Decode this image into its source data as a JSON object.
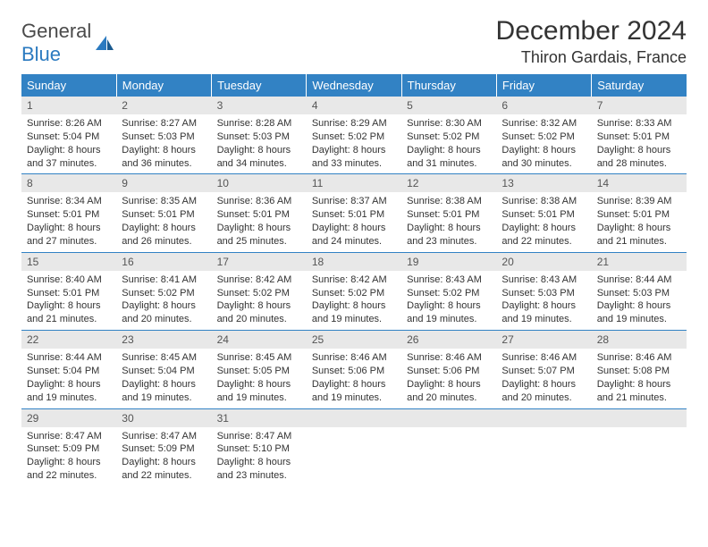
{
  "logo": {
    "word1": "General",
    "word2": "Blue"
  },
  "title": "December 2024",
  "location": "Thiron Gardais, France",
  "colors": {
    "header_bg": "#3282c4",
    "header_text": "#ffffff",
    "daynum_bg": "#e8e8e8",
    "row_border": "#3282c4",
    "logo_gray": "#4a4a4a",
    "logo_blue": "#2b7ac0"
  },
  "weekdays": [
    "Sunday",
    "Monday",
    "Tuesday",
    "Wednesday",
    "Thursday",
    "Friday",
    "Saturday"
  ],
  "weeks": [
    [
      {
        "n": "1",
        "sr": "8:26 AM",
        "ss": "5:04 PM",
        "dl": "8 hours and 37 minutes."
      },
      {
        "n": "2",
        "sr": "8:27 AM",
        "ss": "5:03 PM",
        "dl": "8 hours and 36 minutes."
      },
      {
        "n": "3",
        "sr": "8:28 AM",
        "ss": "5:03 PM",
        "dl": "8 hours and 34 minutes."
      },
      {
        "n": "4",
        "sr": "8:29 AM",
        "ss": "5:02 PM",
        "dl": "8 hours and 33 minutes."
      },
      {
        "n": "5",
        "sr": "8:30 AM",
        "ss": "5:02 PM",
        "dl": "8 hours and 31 minutes."
      },
      {
        "n": "6",
        "sr": "8:32 AM",
        "ss": "5:02 PM",
        "dl": "8 hours and 30 minutes."
      },
      {
        "n": "7",
        "sr": "8:33 AM",
        "ss": "5:01 PM",
        "dl": "8 hours and 28 minutes."
      }
    ],
    [
      {
        "n": "8",
        "sr": "8:34 AM",
        "ss": "5:01 PM",
        "dl": "8 hours and 27 minutes."
      },
      {
        "n": "9",
        "sr": "8:35 AM",
        "ss": "5:01 PM",
        "dl": "8 hours and 26 minutes."
      },
      {
        "n": "10",
        "sr": "8:36 AM",
        "ss": "5:01 PM",
        "dl": "8 hours and 25 minutes."
      },
      {
        "n": "11",
        "sr": "8:37 AM",
        "ss": "5:01 PM",
        "dl": "8 hours and 24 minutes."
      },
      {
        "n": "12",
        "sr": "8:38 AM",
        "ss": "5:01 PM",
        "dl": "8 hours and 23 minutes."
      },
      {
        "n": "13",
        "sr": "8:38 AM",
        "ss": "5:01 PM",
        "dl": "8 hours and 22 minutes."
      },
      {
        "n": "14",
        "sr": "8:39 AM",
        "ss": "5:01 PM",
        "dl": "8 hours and 21 minutes."
      }
    ],
    [
      {
        "n": "15",
        "sr": "8:40 AM",
        "ss": "5:01 PM",
        "dl": "8 hours and 21 minutes."
      },
      {
        "n": "16",
        "sr": "8:41 AM",
        "ss": "5:02 PM",
        "dl": "8 hours and 20 minutes."
      },
      {
        "n": "17",
        "sr": "8:42 AM",
        "ss": "5:02 PM",
        "dl": "8 hours and 20 minutes."
      },
      {
        "n": "18",
        "sr": "8:42 AM",
        "ss": "5:02 PM",
        "dl": "8 hours and 19 minutes."
      },
      {
        "n": "19",
        "sr": "8:43 AM",
        "ss": "5:02 PM",
        "dl": "8 hours and 19 minutes."
      },
      {
        "n": "20",
        "sr": "8:43 AM",
        "ss": "5:03 PM",
        "dl": "8 hours and 19 minutes."
      },
      {
        "n": "21",
        "sr": "8:44 AM",
        "ss": "5:03 PM",
        "dl": "8 hours and 19 minutes."
      }
    ],
    [
      {
        "n": "22",
        "sr": "8:44 AM",
        "ss": "5:04 PM",
        "dl": "8 hours and 19 minutes."
      },
      {
        "n": "23",
        "sr": "8:45 AM",
        "ss": "5:04 PM",
        "dl": "8 hours and 19 minutes."
      },
      {
        "n": "24",
        "sr": "8:45 AM",
        "ss": "5:05 PM",
        "dl": "8 hours and 19 minutes."
      },
      {
        "n": "25",
        "sr": "8:46 AM",
        "ss": "5:06 PM",
        "dl": "8 hours and 19 minutes."
      },
      {
        "n": "26",
        "sr": "8:46 AM",
        "ss": "5:06 PM",
        "dl": "8 hours and 20 minutes."
      },
      {
        "n": "27",
        "sr": "8:46 AM",
        "ss": "5:07 PM",
        "dl": "8 hours and 20 minutes."
      },
      {
        "n": "28",
        "sr": "8:46 AM",
        "ss": "5:08 PM",
        "dl": "8 hours and 21 minutes."
      }
    ],
    [
      {
        "n": "29",
        "sr": "8:47 AM",
        "ss": "5:09 PM",
        "dl": "8 hours and 22 minutes."
      },
      {
        "n": "30",
        "sr": "8:47 AM",
        "ss": "5:09 PM",
        "dl": "8 hours and 22 minutes."
      },
      {
        "n": "31",
        "sr": "8:47 AM",
        "ss": "5:10 PM",
        "dl": "8 hours and 23 minutes."
      },
      {
        "empty": true
      },
      {
        "empty": true
      },
      {
        "empty": true
      },
      {
        "empty": true
      }
    ]
  ],
  "labels": {
    "sunrise": "Sunrise:",
    "sunset": "Sunset:",
    "daylight": "Daylight:"
  }
}
